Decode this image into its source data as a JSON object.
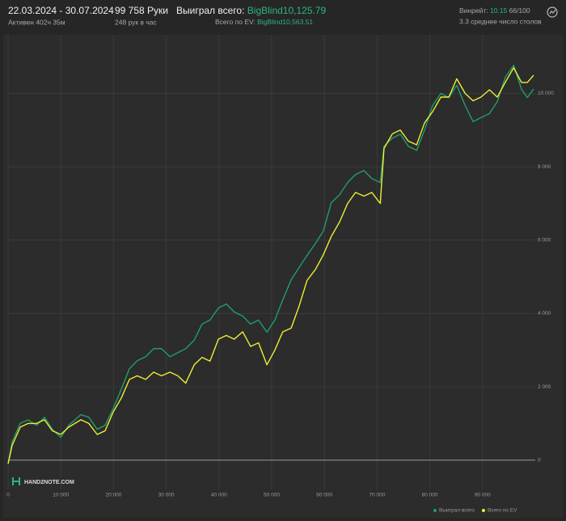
{
  "header": {
    "date_range": "22.03.2024 - 30.07.2024",
    "active": "Активен 402ч 35м",
    "hands": "99 758 Руки",
    "hands_per_hour": "248 рук в час",
    "won_label": "Выиграл всего:",
    "won_value": "BigBlind10,125.79",
    "ev_label": "Всего по EV:",
    "ev_value": "BigBlind10,563.51",
    "winrate_label": "Винрейт:",
    "winrate_value": "10.15",
    "winrate_extra": "66/100",
    "tables": "3.3 среднее число столов",
    "logo": "HAND2NOTE.COM"
  },
  "chart_data": {
    "type": "line",
    "x": [
      0,
      770,
      2300,
      3800,
      5400,
      6900,
      8400,
      10000,
      11500,
      13800,
      15300,
      16900,
      18400,
      19900,
      21500,
      23000,
      24500,
      26100,
      27600,
      29100,
      30700,
      32200,
      33700,
      35300,
      36800,
      38300,
      39900,
      41400,
      42900,
      44500,
      46000,
      47500,
      49100,
      50600,
      52100,
      53700,
      55200,
      56700,
      58300,
      59800,
      61300,
      62900,
      64400,
      65900,
      67500,
      69000,
      70600,
      71300,
      72900,
      74400,
      75900,
      77500,
      79000,
      80500,
      82100,
      83600,
      85100,
      86700,
      88200,
      89700,
      91300,
      92800,
      94300,
      95900,
      97400,
      98500,
      99700
    ],
    "series": [
      {
        "name": "Выиграл всего",
        "color": "#1f9e6c",
        "values": [
          -100,
          500,
          1000,
          1100,
          950,
          1170,
          840,
          620,
          950,
          1240,
          1170,
          840,
          950,
          1390,
          1940,
          2490,
          2710,
          2820,
          3040,
          3040,
          2820,
          2930,
          3040,
          3270,
          3710,
          3820,
          4150,
          4260,
          4040,
          3930,
          3710,
          3820,
          3490,
          3820,
          4370,
          4920,
          5250,
          5580,
          5910,
          6250,
          7020,
          7240,
          7570,
          7790,
          7900,
          7680,
          7570,
          8560,
          8780,
          8890,
          8560,
          8450,
          9000,
          9670,
          10000,
          9890,
          10220,
          9670,
          9230,
          9340,
          9450,
          9780,
          10440,
          10770,
          10110,
          9890,
          10125
        ]
      },
      {
        "name": "Всего по EV",
        "color": "#eeee35",
        "values": [
          -100,
          400,
          900,
          1000,
          1000,
          1100,
          800,
          700,
          900,
          1100,
          1000,
          700,
          800,
          1300,
          1700,
          2200,
          2300,
          2200,
          2400,
          2300,
          2400,
          2300,
          2100,
          2600,
          2800,
          2700,
          3300,
          3400,
          3300,
          3500,
          3100,
          3200,
          2600,
          3000,
          3500,
          3600,
          4200,
          4900,
          5200,
          5600,
          6100,
          6500,
          7000,
          7300,
          7200,
          7300,
          7000,
          8500,
          8900,
          9000,
          8700,
          8600,
          9200,
          9500,
          9900,
          9900,
          10400,
          10000,
          9800,
          9900,
          10100,
          9900,
          10300,
          10700,
          10300,
          10300,
          10500
        ]
      }
    ],
    "xlim": [
      0,
      100000
    ],
    "ylim": [
      -800,
      11600
    ],
    "xticks": [
      0,
      {
        "value": 10000,
        "label": "10 000"
      },
      {
        "value": 20000,
        "label": "20 000"
      },
      {
        "value": 30000,
        "label": "30 000"
      },
      {
        "value": 40000,
        "label": "40 000"
      },
      {
        "value": 50000,
        "label": "50 000"
      },
      {
        "value": 60000,
        "label": "60 000"
      },
      {
        "value": 70000,
        "label": "70 000"
      },
      {
        "value": 80000,
        "label": "80 000"
      },
      {
        "value": 90000,
        "label": "90 000"
      }
    ],
    "yticks": [
      0,
      {
        "value": 2000,
        "label": "2 000"
      },
      {
        "value": 4000,
        "label": "4 000"
      },
      {
        "value": 6000,
        "label": "6 000"
      },
      {
        "value": 8000,
        "label": "8 000"
      },
      {
        "value": 10000,
        "label": "10 000"
      }
    ],
    "grid": true
  }
}
